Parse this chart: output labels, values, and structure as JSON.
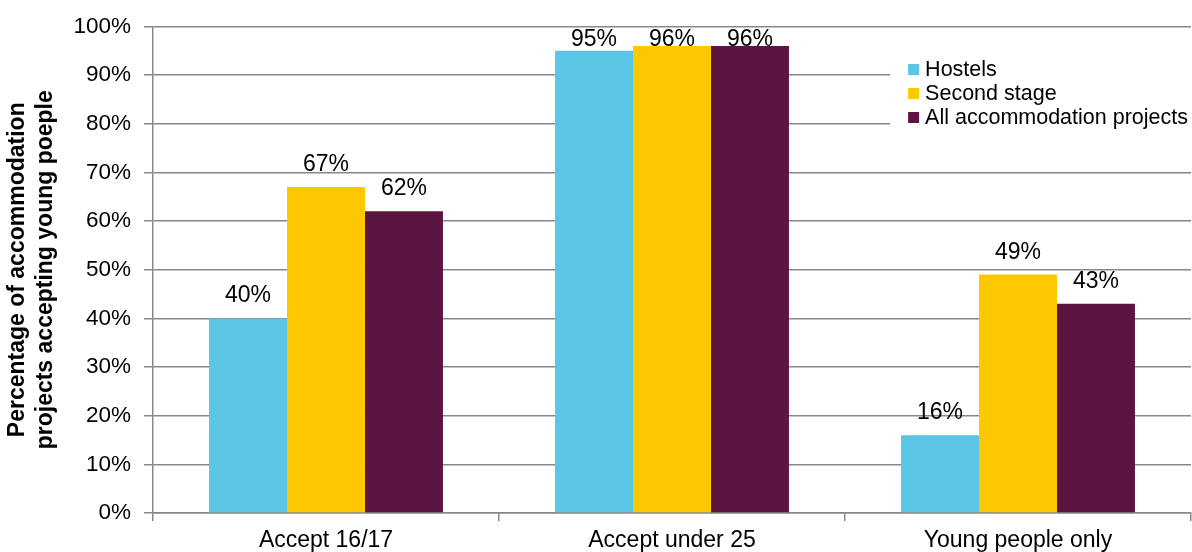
{
  "chart_data": {
    "type": "bar",
    "categories": [
      "Accept 16/17",
      "Accept under 25",
      "Young people only"
    ],
    "series": [
      {
        "name": "Hostels",
        "color": "#5bc5e6",
        "values": [
          40,
          95,
          16
        ],
        "value_labels": [
          "40%",
          "95%",
          "16%"
        ]
      },
      {
        "name": "Second stage",
        "color": "#fdc800",
        "values": [
          67,
          96,
          49
        ],
        "value_labels": [
          "67%",
          "96%",
          "49%"
        ]
      },
      {
        "name": "All accommodation projects",
        "color": "#5c1440",
        "values": [
          62,
          96,
          43
        ],
        "value_labels": [
          "62%",
          "96%",
          "43%"
        ]
      }
    ],
    "ylabel": "Percentage of accommodation projects accepting young poeple",
    "ylim": [
      0,
      100
    ],
    "yticks": [
      {
        "value": 0,
        "label": "0%"
      },
      {
        "value": 10,
        "label": "10%"
      },
      {
        "value": 20,
        "label": "20%"
      },
      {
        "value": 30,
        "label": "30%"
      },
      {
        "value": 40,
        "label": "40%"
      },
      {
        "value": 50,
        "label": "50%"
      },
      {
        "value": 60,
        "label": "60%"
      },
      {
        "value": 70,
        "label": "70%"
      },
      {
        "value": 80,
        "label": "80%"
      },
      {
        "value": 90,
        "label": "90%"
      },
      {
        "value": 100,
        "label": "100%"
      }
    ],
    "grid": "y",
    "legend": "top right"
  }
}
